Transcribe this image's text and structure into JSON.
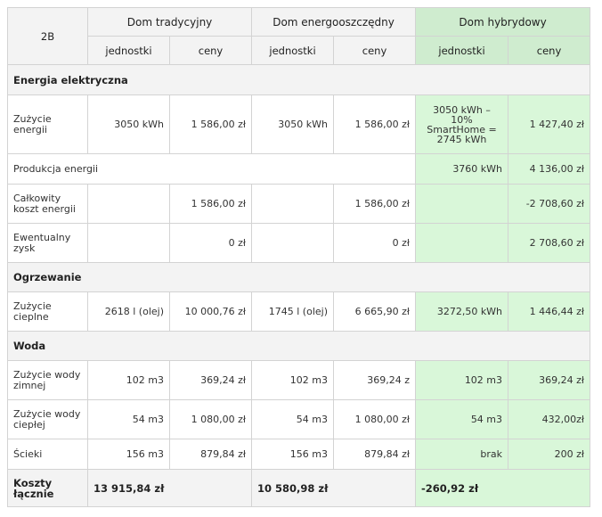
{
  "header": {
    "corner": "2B",
    "groups": [
      "Dom tradycyjny",
      "Dom energooszczędny",
      "Dom hybrydowy"
    ],
    "sub": [
      "jednostki",
      "ceny",
      "jednostki",
      "ceny",
      "jednostki",
      "ceny"
    ]
  },
  "sections": {
    "electricity": "Energia elektryczna",
    "heating": "Ogrzewanie",
    "water": "Woda"
  },
  "rows": {
    "energy_use": {
      "label": "Zużycie energii",
      "trad_units": "3050 kWh",
      "trad_price": "1 586,00 zł",
      "eco_units": "3050 kWh",
      "eco_price": "1 586,00 zł",
      "hyb_units": "3050 kWh – 10% SmartHome = 2745 kWh",
      "hyb_price": "1 427,40 zł"
    },
    "energy_prod": {
      "label": "Produkcja energii",
      "hyb_units": "3760 kWh",
      "hyb_price": "4 136,00 zł"
    },
    "total_energy": {
      "label": "Całkowity koszt energii",
      "trad_price": "1 586,00 zł",
      "eco_price": "1 586,00 zł",
      "hyb_price": "-2 708,60 zł"
    },
    "profit": {
      "label": "Ewentualny zysk",
      "trad_price": "0 zł",
      "eco_price": "0 zł",
      "hyb_price": "2 708,60 zł"
    },
    "heat_use": {
      "label": "Zużycie cieplne",
      "trad_units": "2618 l (olej)",
      "trad_price": "10 000,76 zł",
      "eco_units": "1745 l (olej)",
      "eco_price": "6 665,90 zł",
      "hyb_units": "3272,50 kWh",
      "hyb_price": "1 446,44 zł"
    },
    "cold_water": {
      "label": "Zużycie wody zimnej",
      "trad_units": "102 m3",
      "trad_price": "369,24 zł",
      "eco_units": "102 m3",
      "eco_price": "369,24 z",
      "hyb_units": "102 m3",
      "hyb_price": "369,24 zł"
    },
    "hot_water": {
      "label": "Zużycie wody ciepłej",
      "trad_units": "54 m3",
      "trad_price": "1 080,00 zł",
      "eco_units": "54 m3",
      "eco_price": "1 080,00 zł",
      "hyb_units": "54 m3",
      "hyb_price": "432,00zł"
    },
    "sewage": {
      "label": "Ścieki",
      "trad_units": "156 m3",
      "trad_price": "879,84 zł",
      "eco_units": "156 m3",
      "eco_price": "879,84 zł",
      "hyb_units": "brak",
      "hyb_price": "200 zł"
    }
  },
  "totals": {
    "label": "Koszty łącznie",
    "trad": "13 915,84 zł",
    "eco": "10 580,98 zł",
    "hyb": "-260,92 zł"
  }
}
